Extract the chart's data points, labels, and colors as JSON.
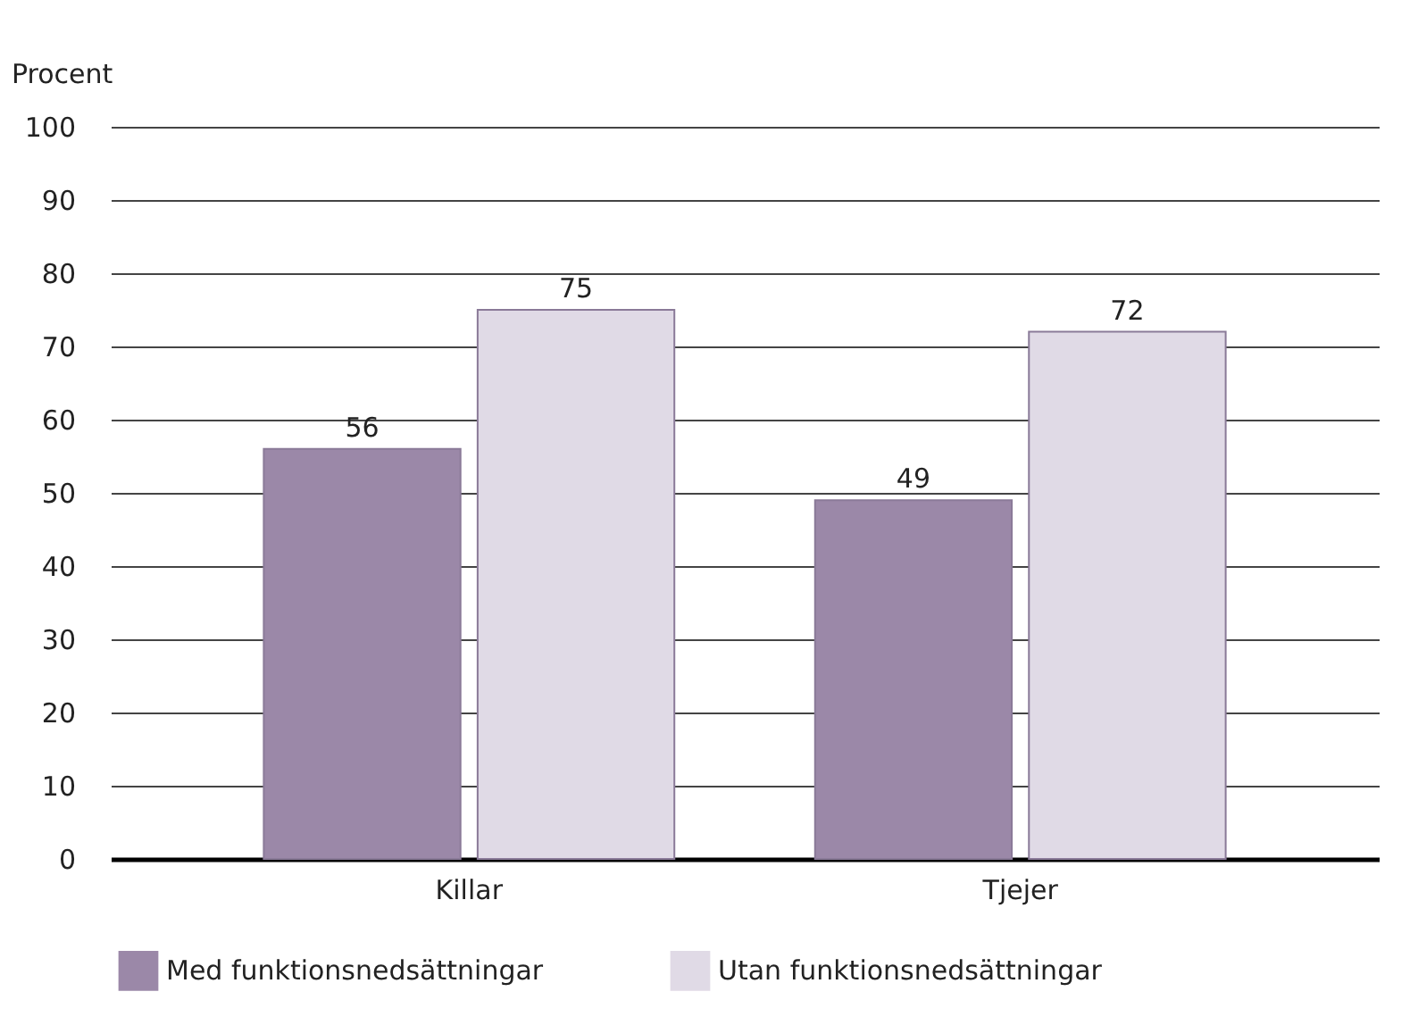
{
  "chart_data": {
    "type": "bar",
    "ylabel": "Procent",
    "categories": [
      "Killar",
      "Tjejer"
    ],
    "series": [
      {
        "name": "Med funktionsnedsättningar",
        "color": "#9b88a8",
        "values": [
          56,
          49
        ]
      },
      {
        "name": "Utan funktionsnedsättningar",
        "color": "#e0dae6",
        "values": [
          75,
          72
        ]
      }
    ],
    "ylim": [
      0,
      100
    ],
    "yticks": [
      0,
      10,
      20,
      30,
      40,
      50,
      60,
      70,
      80,
      90,
      100
    ],
    "grid": "y",
    "legend": "bottom",
    "data_labels": true
  }
}
